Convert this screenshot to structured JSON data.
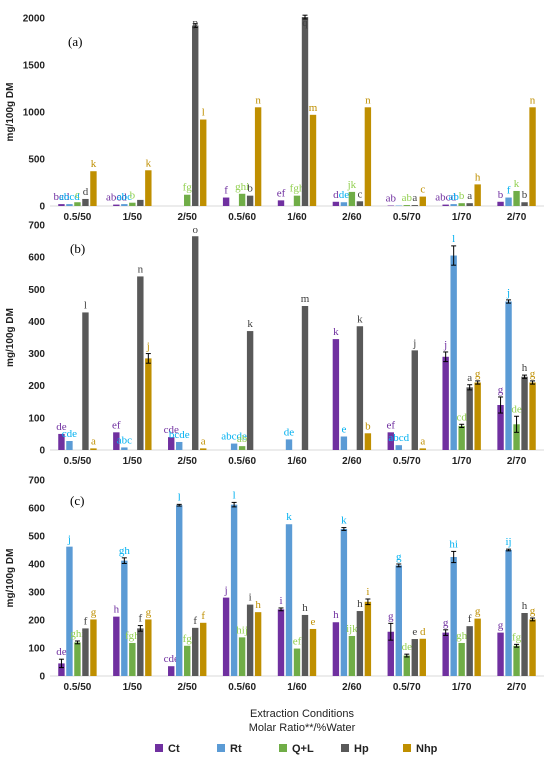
{
  "colors": {
    "Ct": "#7030a0",
    "Rt": "#5b9bd5",
    "Q+L": "#70ad47",
    "Hp": "#595959",
    "Nhp": "#bf8f00"
  },
  "letter_colors": {
    "Ct": "#7030a0",
    "Rt": "#00b0f0",
    "Q+L": "#92d050",
    "Hp": "#404040",
    "Nhp": "#bf8f00"
  },
  "x_title_1": "Extraction Conditions",
  "x_title_2": "Molar Ratio**/%Water",
  "legend": [
    "Ct",
    "Rt",
    "Q+L",
    "Hp",
    "Nhp"
  ],
  "chart_data": [
    {
      "type": "bar",
      "panel_label": "(a)",
      "ylabel": "mg/100g DM",
      "ylim": [
        0,
        2000
      ],
      "yticks": [
        0,
        500,
        1000,
        1500,
        2000
      ],
      "categories": [
        "0.5/50",
        "1/50",
        "2/50",
        "0.5/60",
        "1/60",
        "2/60",
        "0.5/70",
        "1/70",
        "2/70"
      ],
      "series": [
        {
          "name": "Ct",
          "values": [
            20,
            15,
            0,
            90,
            60,
            45,
            5,
            15,
            45
          ],
          "errors": [
            0,
            0,
            0,
            0,
            0,
            0,
            0,
            0,
            0
          ],
          "letters": [
            "bcd",
            "abcd",
            "",
            "f",
            "ef",
            "d",
            "ab",
            "abcd",
            "b"
          ]
        },
        {
          "name": "Rt",
          "values": [
            20,
            20,
            0,
            0,
            0,
            40,
            5,
            20,
            90
          ],
          "errors": [
            0,
            0,
            0,
            0,
            0,
            0,
            0,
            0,
            0
          ],
          "letters": [
            "abcd",
            "abc",
            "",
            "",
            "",
            "de",
            "",
            "ab",
            "f"
          ]
        },
        {
          "name": "Q+L",
          "values": [
            40,
            35,
            120,
            130,
            110,
            150,
            10,
            30,
            160
          ],
          "errors": [
            0,
            0,
            0,
            0,
            0,
            0,
            0,
            0,
            0
          ],
          "letters": [
            "c",
            "b",
            "fg",
            "ghi",
            "fgh",
            "jk",
            "ab",
            "b",
            "k"
          ]
        },
        {
          "name": "Hp",
          "values": [
            75,
            65,
            1920,
            110,
            2010,
            50,
            10,
            30,
            40
          ],
          "errors": [
            0,
            0,
            20,
            0,
            20,
            0,
            0,
            0,
            0
          ],
          "letters": [
            "d",
            "",
            "p",
            "b",
            "q",
            "c",
            "a",
            "a",
            "b"
          ]
        },
        {
          "name": "Nhp",
          "values": [
            370,
            380,
            920,
            1050,
            970,
            1050,
            100,
            230,
            1050
          ],
          "errors": [
            0,
            0,
            0,
            0,
            0,
            0,
            0,
            0,
            0
          ],
          "letters": [
            "k",
            "k",
            "l",
            "n",
            "m",
            "n",
            "c",
            "h",
            "n"
          ]
        }
      ]
    },
    {
      "type": "bar",
      "panel_label": "(b)",
      "ylabel": "mg/100g DM",
      "ylim": [
        0,
        700
      ],
      "yticks": [
        0,
        100,
        200,
        300,
        400,
        500,
        600,
        700
      ],
      "categories": [
        "0.5/50",
        "1/50",
        "2/50",
        "0.5/60",
        "1/60",
        "2/60",
        "0.5/70",
        "1/70",
        "2/70"
      ],
      "series": [
        {
          "name": "Ct",
          "values": [
            50,
            55,
            40,
            0,
            0,
            345,
            55,
            290,
            140
          ],
          "errors": [
            0,
            0,
            0,
            0,
            0,
            0,
            0,
            15,
            25
          ],
          "letters": [
            "de",
            "ef",
            "cde",
            "",
            "",
            "k",
            "ef",
            "j",
            "g"
          ]
        },
        {
          "name": "Rt",
          "values": [
            28,
            8,
            25,
            20,
            33,
            42,
            15,
            605,
            462
          ],
          "errors": [
            0,
            0,
            0,
            0,
            0,
            0,
            0,
            30,
            5
          ],
          "letters": [
            "cde",
            "abc",
            "bcde",
            "abcde",
            "de",
            "e",
            "abcd",
            "l",
            "j"
          ]
        },
        {
          "name": "Q+L",
          "values": [
            0,
            0,
            0,
            12,
            0,
            0,
            0,
            75,
            80
          ],
          "errors": [
            0,
            0,
            0,
            0,
            0,
            0,
            0,
            5,
            25
          ],
          "letters": [
            "",
            "",
            "",
            "ab",
            "",
            "",
            "",
            "cd",
            "de"
          ]
        },
        {
          "name": "Hp",
          "values": [
            428,
            540,
            665,
            370,
            448,
            385,
            310,
            195,
            228
          ],
          "errors": [
            0,
            0,
            0,
            0,
            0,
            0,
            0,
            8,
            5
          ],
          "letters": [
            "l",
            "n",
            "o",
            "k",
            "m",
            "k",
            "j",
            "a",
            "h"
          ]
        },
        {
          "name": "Nhp",
          "values": [
            5,
            285,
            5,
            0,
            0,
            52,
            5,
            210,
            210
          ],
          "errors": [
            0,
            15,
            0,
            0,
            0,
            0,
            0,
            5,
            5
          ],
          "letters": [
            "a",
            "j",
            "a",
            "",
            "",
            "b",
            "a",
            "g",
            "g"
          ]
        }
      ]
    },
    {
      "type": "bar",
      "panel_label": "(c)",
      "ylabel": "mg/100g DM",
      "ylim": [
        0,
        700
      ],
      "yticks": [
        0,
        100,
        200,
        300,
        400,
        500,
        600,
        700
      ],
      "categories": [
        "0.5/50",
        "1/50",
        "2/50",
        "0.5/60",
        "1/60",
        "2/60",
        "0.5/70",
        "1/70",
        "2/70"
      ],
      "series": [
        {
          "name": "Ct",
          "values": [
            45,
            212,
            35,
            280,
            238,
            192,
            158,
            155,
            155
          ],
          "errors": [
            15,
            0,
            0,
            0,
            5,
            0,
            30,
            10,
            0
          ],
          "letters": [
            "de",
            "h",
            "cde",
            "j",
            "i",
            "h",
            "g",
            "g",
            "g"
          ]
        },
        {
          "name": "Rt",
          "values": [
            462,
            412,
            610,
            612,
            542,
            525,
            395,
            425,
            450
          ],
          "errors": [
            0,
            10,
            3,
            8,
            0,
            5,
            5,
            20,
            3
          ],
          "letters": [
            "j",
            "gh",
            "l",
            "l",
            "k",
            "k",
            "g",
            "hi",
            "ij"
          ]
        },
        {
          "name": "Q+L",
          "values": [
            120,
            118,
            108,
            138,
            98,
            143,
            73,
            118,
            108
          ],
          "errors": [
            5,
            0,
            0,
            0,
            0,
            0,
            5,
            0,
            5
          ],
          "letters": [
            "ghi",
            "fgh",
            "fg",
            "hij",
            "ef",
            "ijk",
            "de",
            "gh",
            "fg"
          ]
        },
        {
          "name": "Hp",
          "values": [
            170,
            170,
            172,
            255,
            218,
            232,
            132,
            178,
            225
          ],
          "errors": [
            0,
            10,
            0,
            0,
            0,
            0,
            0,
            0,
            0
          ],
          "letters": [
            "f",
            "f",
            "f",
            "i",
            "h",
            "h",
            "e",
            "f",
            "h"
          ]
        },
        {
          "name": "Nhp",
          "values": [
            202,
            202,
            190,
            228,
            168,
            265,
            133,
            205,
            202
          ],
          "errors": [
            0,
            0,
            0,
            0,
            0,
            10,
            0,
            0,
            5
          ],
          "letters": [
            "g",
            "g",
            "f",
            "h",
            "e",
            "i",
            "d",
            "g",
            "g"
          ]
        }
      ]
    }
  ]
}
